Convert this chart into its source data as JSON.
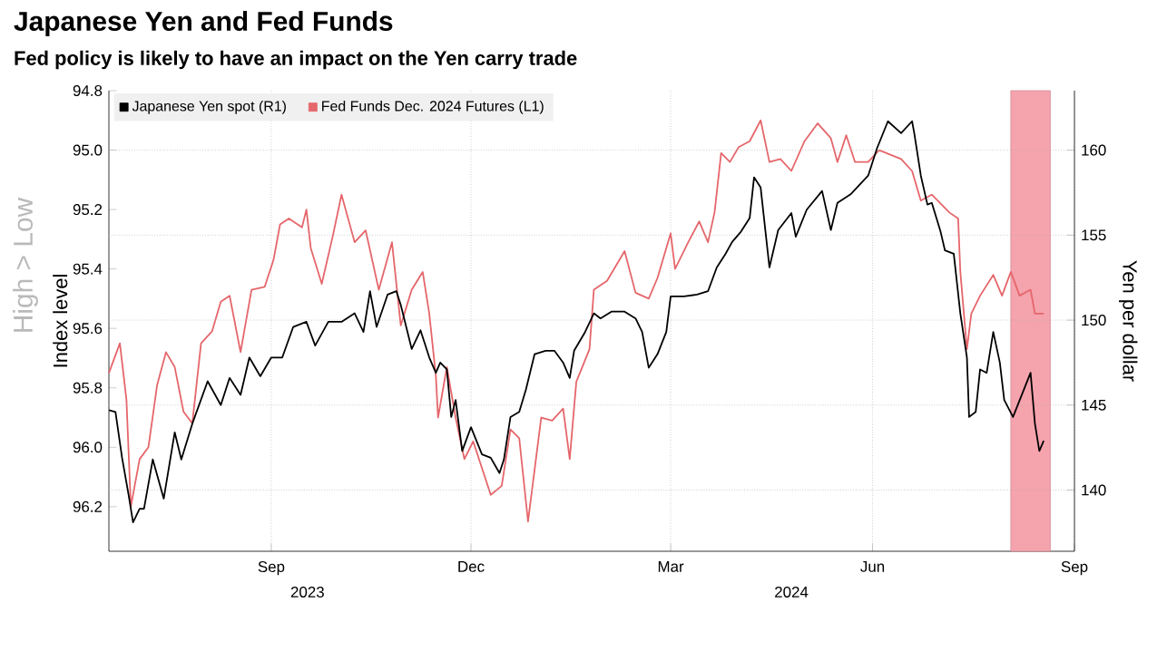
{
  "chart_data": {
    "type": "line",
    "title": "Japanese Yen and Fed Funds",
    "subtitle": "Fed policy is likely to have an impact on the Yen carry trade",
    "ylabel": "Index level",
    "y2label": "Yen per dollar",
    "xlim": [
      "2023-07-03",
      "2024-09-15"
    ],
    "xticks": [
      {
        "value": "2023-09-15",
        "label": "Sep"
      },
      {
        "value": "2023-12-15",
        "label": "Dec"
      },
      {
        "value": "2024-03-15",
        "label": "Mar"
      },
      {
        "value": "2024-06-15",
        "label": "Jun"
      },
      {
        "value": "2024-09-15",
        "label": "Sep"
      }
    ],
    "ylim": [
      96.35,
      94.8
    ],
    "yticks": [
      {
        "value": 94.8,
        "label": "94.8"
      },
      {
        "value": 95.0,
        "label": "95.0"
      },
      {
        "value": 95.2,
        "label": "95.2"
      },
      {
        "value": 95.4,
        "label": "95.4"
      },
      {
        "value": 95.6,
        "label": "95.6"
      },
      {
        "value": 95.8,
        "label": "95.8"
      },
      {
        "value": 96.0,
        "label": "96.0"
      },
      {
        "value": 96.2,
        "label": "96.2"
      }
    ],
    "y2lim": [
      136.4,
      163.5
    ],
    "y2ticks": [
      140,
      145,
      150,
      155,
      160
    ],
    "grid": true,
    "legend": "top left",
    "marker": "none",
    "bands": [
      {
        "axis": "x",
        "from": "2024-08-17",
        "to": "2024-09-04",
        "color": "#f5a3ad"
      }
    ],
    "annotations": [
      "High > Low",
      "2023",
      "2024"
    ],
    "series": [
      {
        "name": "Japanese Yen spot (R1)",
        "color": "#000000",
        "axis": "y2",
        "x": [
          "2023-07-03",
          "2023-07-06",
          "2023-07-09",
          "2023-07-12",
          "2023-07-14",
          "2023-07-17",
          "2023-07-19",
          "2023-07-23",
          "2023-07-28",
          "2023-08-02",
          "2023-08-05",
          "2023-08-10",
          "2023-08-17",
          "2023-08-23",
          "2023-08-27",
          "2023-09-01",
          "2023-09-05",
          "2023-09-10",
          "2023-09-15",
          "2023-09-20",
          "2023-09-25",
          "2023-10-01",
          "2023-10-05",
          "2023-10-11",
          "2023-10-17",
          "2023-10-23",
          "2023-10-27",
          "2023-10-30",
          "2023-11-02",
          "2023-11-07",
          "2023-11-11",
          "2023-11-13",
          "2023-11-18",
          "2023-11-22",
          "2023-11-26",
          "2023-11-29",
          "2023-12-01",
          "2023-12-04",
          "2023-12-06",
          "2023-12-08",
          "2023-12-11",
          "2023-12-15",
          "2023-12-20",
          "2023-12-24",
          "2023-12-28",
          "2023-12-30",
          "2024-01-02",
          "2024-01-06",
          "2024-01-09",
          "2024-01-13",
          "2024-01-18",
          "2024-01-22",
          "2024-01-26",
          "2024-01-29",
          "2024-01-31",
          "2024-02-05",
          "2024-02-09",
          "2024-02-12",
          "2024-02-17",
          "2024-02-23",
          "2024-02-28",
          "2024-03-02",
          "2024-03-05",
          "2024-03-09",
          "2024-03-13",
          "2024-03-15",
          "2024-03-21",
          "2024-03-27",
          "2024-04-01",
          "2024-04-05",
          "2024-04-09",
          "2024-04-12",
          "2024-04-16",
          "2024-04-20",
          "2024-04-22",
          "2024-04-25",
          "2024-04-29",
          "2024-05-03",
          "2024-05-09",
          "2024-05-11",
          "2024-05-16",
          "2024-05-23",
          "2024-05-27",
          "2024-05-30",
          "2024-06-05",
          "2024-06-13",
          "2024-06-17",
          "2024-06-22",
          "2024-06-28",
          "2024-07-03",
          "2024-07-04",
          "2024-07-07",
          "2024-07-10",
          "2024-07-12",
          "2024-07-16",
          "2024-07-18",
          "2024-07-22",
          "2024-07-25",
          "2024-07-28",
          "2024-07-29",
          "2024-08-01",
          "2024-08-03",
          "2024-08-06",
          "2024-08-09",
          "2024-08-12",
          "2024-08-14",
          "2024-08-18",
          "2024-08-22",
          "2024-08-26",
          "2024-08-28",
          "2024-08-30",
          "2024-09-01"
        ],
        "values": [
          144.7,
          144.6,
          141.9,
          139.7,
          138.1,
          138.9,
          138.9,
          141.8,
          139.5,
          143.4,
          141.8,
          143.9,
          146.4,
          145.0,
          146.6,
          145.6,
          147.8,
          146.7,
          147.8,
          147.8,
          149.6,
          149.9,
          148.5,
          149.9,
          149.9,
          150.4,
          149.3,
          151.7,
          149.6,
          151.5,
          151.7,
          150.9,
          148.3,
          149.4,
          147.8,
          146.9,
          147.5,
          147.1,
          144.3,
          145.3,
          142.3,
          143.7,
          142.1,
          141.9,
          141.0,
          141.8,
          144.3,
          144.6,
          145.9,
          148.0,
          148.2,
          148.2,
          147.5,
          146.6,
          148.2,
          149.3,
          150.4,
          150.1,
          150.5,
          150.5,
          150.1,
          149.3,
          147.2,
          148.0,
          149.3,
          151.4,
          151.4,
          151.5,
          151.7,
          153.1,
          153.9,
          154.6,
          155.2,
          156.0,
          158.4,
          157.8,
          153.1,
          155.3,
          156.3,
          154.9,
          156.5,
          157.6,
          155.3,
          156.9,
          157.4,
          158.5,
          160.1,
          161.7,
          161.0,
          161.7,
          161.0,
          158.5,
          156.8,
          156.9,
          155.2,
          154.1,
          153.9,
          150.4,
          147.8,
          144.3,
          144.6,
          147.1,
          146.9,
          149.3,
          147.5,
          145.3,
          144.3,
          145.6,
          146.9,
          143.9,
          142.3,
          142.9
        ]
      },
      {
        "name": "Fed Funds Dec. 2024 Futures (L1)",
        "color": "#e5666b",
        "x": [
          "2023-07-03",
          "2023-07-08",
          "2023-07-11",
          "2023-07-13",
          "2023-07-17",
          "2023-07-21",
          "2023-07-25",
          "2023-07-29",
          "2023-08-02",
          "2023-08-06",
          "2023-08-10",
          "2023-08-14",
          "2023-08-19",
          "2023-08-23",
          "2023-08-27",
          "2023-09-01",
          "2023-09-06",
          "2023-09-12",
          "2023-09-16",
          "2023-09-19",
          "2023-09-23",
          "2023-09-29",
          "2023-10-01",
          "2023-10-03",
          "2023-10-08",
          "2023-10-13",
          "2023-10-17",
          "2023-10-23",
          "2023-10-28",
          "2023-11-03",
          "2023-11-09",
          "2023-11-13",
          "2023-11-18",
          "2023-11-23",
          "2023-11-26",
          "2023-11-29",
          "2023-11-30",
          "2023-12-04",
          "2023-12-08",
          "2023-12-12",
          "2023-12-16",
          "2023-12-24",
          "2023-12-29",
          "2024-01-02",
          "2024-01-06",
          "2024-01-10",
          "2024-01-16",
          "2024-01-21",
          "2024-01-26",
          "2024-01-29",
          "2024-02-01",
          "2024-02-07",
          "2024-02-09",
          "2024-02-15",
          "2024-02-23",
          "2024-02-28",
          "2024-03-05",
          "2024-03-09",
          "2024-03-15",
          "2024-03-17",
          "2024-03-23",
          "2024-03-28",
          "2024-04-01",
          "2024-04-04",
          "2024-04-07",
          "2024-04-11",
          "2024-04-15",
          "2024-04-20",
          "2024-04-25",
          "2024-04-29",
          "2024-05-04",
          "2024-05-09",
          "2024-05-15",
          "2024-05-21",
          "2024-05-27",
          "2024-05-30",
          "2024-06-03",
          "2024-06-07",
          "2024-06-13",
          "2024-06-18",
          "2024-06-28",
          "2024-07-03",
          "2024-07-07",
          "2024-07-12",
          "2024-07-20",
          "2024-07-24",
          "2024-07-25",
          "2024-07-28",
          "2024-07-30",
          "2024-08-03",
          "2024-08-09",
          "2024-08-13",
          "2024-08-17",
          "2024-08-21",
          "2024-08-26",
          "2024-08-28",
          "2024-09-01"
        ],
        "values": [
          95.75,
          95.65,
          95.84,
          96.2,
          96.04,
          96.0,
          95.79,
          95.68,
          95.73,
          95.88,
          95.92,
          95.65,
          95.61,
          95.51,
          95.49,
          95.68,
          95.47,
          95.46,
          95.37,
          95.25,
          95.23,
          95.26,
          95.2,
          95.33,
          95.45,
          95.29,
          95.15,
          95.31,
          95.27,
          95.47,
          95.31,
          95.59,
          95.47,
          95.41,
          95.55,
          95.76,
          95.9,
          95.73,
          95.9,
          96.04,
          95.98,
          96.16,
          96.13,
          95.94,
          95.97,
          96.25,
          95.9,
          95.91,
          95.87,
          96.04,
          95.78,
          95.67,
          95.47,
          95.44,
          95.34,
          95.48,
          95.5,
          95.43,
          95.28,
          95.4,
          95.31,
          95.24,
          95.31,
          95.21,
          95.01,
          95.04,
          94.99,
          94.97,
          94.9,
          95.04,
          95.03,
          95.07,
          94.97,
          94.91,
          94.96,
          95.04,
          94.95,
          95.04,
          95.04,
          95.0,
          95.03,
          95.07,
          95.17,
          95.15,
          95.21,
          95.23,
          95.41,
          95.67,
          95.55,
          95.49,
          95.42,
          95.49,
          95.41,
          95.49,
          95.47,
          95.55,
          95.55
        ]
      }
    ]
  }
}
